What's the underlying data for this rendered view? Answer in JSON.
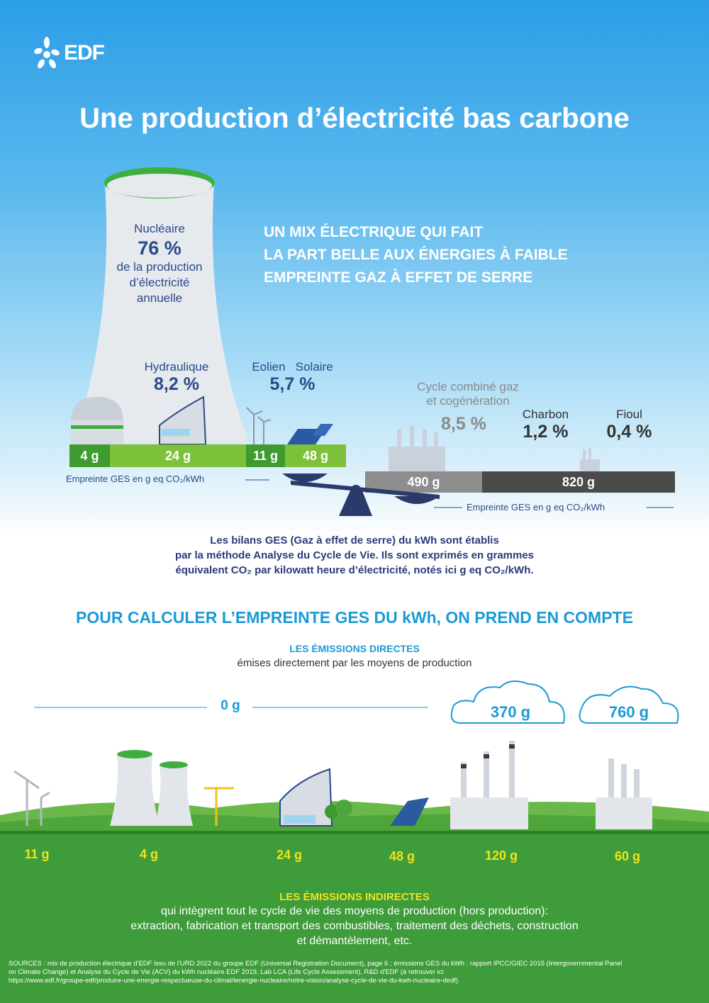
{
  "brand": {
    "logo_text": "EDF",
    "logo_icon": "edf-flower-icon"
  },
  "title": "Une production d’électricité bas carbone",
  "headline": [
    "UN MIX ÉLECTRIQUE QUI FAIT",
    "LA PART BELLE AUX ÉNERGIES À FAIBLE",
    "EMPREINTE GAZ À EFFET DE SERRE"
  ],
  "mix": {
    "nuclear": {
      "label": "Nucléaire",
      "pct": "76 %",
      "desc": [
        "de la production",
        "d’électricité",
        "annuelle"
      ]
    },
    "hydro": {
      "label": "Hydraulique",
      "pct": "8,2 %"
    },
    "wind_solar": {
      "label_wind": "Eolien",
      "label_solar": "Solaire",
      "pct": "5,7 %"
    },
    "gas": {
      "label": [
        "Cycle combiné gaz",
        "et cogénération"
      ],
      "pct": "8,5 %"
    },
    "coal": {
      "label": "Charbon",
      "pct": "1,2 %"
    },
    "oil": {
      "label": "Fioul",
      "pct": "0,4 %"
    }
  },
  "footprint_left": {
    "nuclear": "4 g",
    "hydro": "24 g",
    "wind": "11 g",
    "solar": "48 g"
  },
  "footprint_right": {
    "gas": "490 g",
    "coal_oil": "820 g"
  },
  "footprint_note_left": "Empreinte GES en g eq CO₂/kWh",
  "footprint_note_right": "Empreinte GES en g eq CO₂/kWh",
  "method": [
    "Les bilans GES (Gaz à effet de serre) du kWh sont établis",
    "par la méthode Analyse du Cycle de Vie. Ils sont exprimés en grammes",
    "équivalent CO₂ par kilowatt heure d’électricité, notés ici g eq CO₂/kWh."
  ],
  "calc_title": "POUR CALCULER L’EMPREINTE GES DU kWh, ON PREND EN COMPTE",
  "direct": {
    "title": "LES ÉMISSIONS DIRECTES",
    "subtitle": "émises directement par les moyens de production",
    "zero": "0 g",
    "gas": "370 g",
    "coal": "760 g"
  },
  "indirect_values": [
    "11 g",
    "4 g",
    "24 g",
    "48 g",
    "120 g",
    "60 g"
  ],
  "indirect": {
    "title": "LES ÉMISSIONS INDIRECTES",
    "text": [
      "qui intègrent tout le cycle de vie des moyens de production (hors production):",
      "extraction, fabrication et transport des combustibles, traitement des déchets, construction",
      "et démantèlement, etc."
    ]
  },
  "sources": [
    "SOURCES : mix de production électrique d'EDF issu de l'URD 2022 du groupe EDF (Universal Registration Document), page 6 ; émissions GES du kWh : rapport IPCC/GIEC 2015 (Intergovernmental Panel",
    "on Climate Change) et Analyse du Cycle de Vie (ACV) du kWh nucléaire EDF 2019, Lab LCA (Life Cycle Assessment), R&D d'EDF (à retrouver ici",
    "https://www.edf.fr/groupe-edf/produire-une-energie-respectueuse-du-climat/lenergie-nucleaire/notre-vision/analyse-cycle-de-vie-du-kwh-nucleaire-dedf)"
  ],
  "colors": {
    "green": "#7dc13a",
    "dark_green": "#3f9a2f",
    "blue_text": "#2a4a8a",
    "accent_blue": "#1b9ad6",
    "yellow": "#f2e21a"
  }
}
